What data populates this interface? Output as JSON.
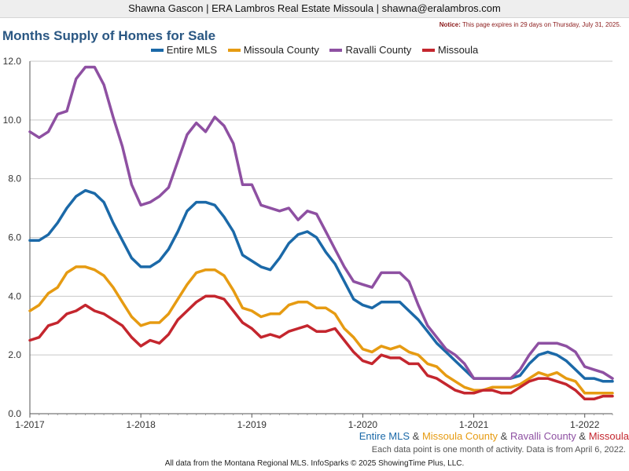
{
  "header": {
    "contact": "Shawna Gascon | ERA Lambros Real Estate Missoula | shawna@eralambros.com",
    "notice_label": "Notice:",
    "notice_text": "This page expires in 29 days on Thursday, July 31, 2025."
  },
  "footnote": "Each data point is one month of activity. Data is from April 6, 2022.",
  "footer": "All data from the Montana Regional MLS. InfoSparks © 2025 ShowingTime Plus, LLC.",
  "chart_data": {
    "type": "line",
    "title": "Months Supply of Homes for Sale",
    "xlabel": "",
    "ylabel": "",
    "ylim": [
      0,
      12
    ],
    "y_ticks": [
      "0.0",
      "2.0",
      "4.0",
      "6.0",
      "8.0",
      "10.0",
      "12.0"
    ],
    "x_start": "2017-01",
    "x_ticks": [
      "1-2017",
      "1-2018",
      "1-2019",
      "1-2020",
      "1-2021",
      "1-2022"
    ],
    "grid": true,
    "legend_position": "top",
    "series": [
      {
        "name": "Entire MLS",
        "color": "#1b69a8",
        "values": [
          5.9,
          5.9,
          6.1,
          6.5,
          7.0,
          7.4,
          7.6,
          7.5,
          7.2,
          6.5,
          5.9,
          5.3,
          5.0,
          5.0,
          5.2,
          5.6,
          6.2,
          6.9,
          7.2,
          7.2,
          7.1,
          6.7,
          6.2,
          5.4,
          5.2,
          5.0,
          4.9,
          5.3,
          5.8,
          6.1,
          6.2,
          6.0,
          5.5,
          5.1,
          4.5,
          3.9,
          3.7,
          3.6,
          3.8,
          3.8,
          3.8,
          3.5,
          3.2,
          2.8,
          2.4,
          2.1,
          1.8,
          1.5,
          1.2,
          1.2,
          1.2,
          1.2,
          1.2,
          1.3,
          1.7,
          2.0,
          2.1,
          2.0,
          1.8,
          1.5,
          1.2,
          1.2,
          1.1,
          1.1
        ]
      },
      {
        "name": "Missoula County",
        "color": "#e69b12",
        "values": [
          3.5,
          3.7,
          4.1,
          4.3,
          4.8,
          5.0,
          5.0,
          4.9,
          4.7,
          4.3,
          3.8,
          3.3,
          3.0,
          3.1,
          3.1,
          3.4,
          3.9,
          4.4,
          4.8,
          4.9,
          4.9,
          4.7,
          4.2,
          3.6,
          3.5,
          3.3,
          3.4,
          3.4,
          3.7,
          3.8,
          3.8,
          3.6,
          3.6,
          3.4,
          2.9,
          2.6,
          2.2,
          2.1,
          2.3,
          2.2,
          2.3,
          2.1,
          2.0,
          1.7,
          1.6,
          1.3,
          1.1,
          0.9,
          0.8,
          0.8,
          0.9,
          0.9,
          0.9,
          1.0,
          1.2,
          1.4,
          1.3,
          1.4,
          1.2,
          1.1,
          0.7,
          0.7,
          0.7,
          0.7
        ]
      },
      {
        "name": "Ravalli County",
        "color": "#8e50a2",
        "values": [
          9.6,
          9.4,
          9.6,
          10.2,
          10.3,
          11.4,
          11.8,
          11.8,
          11.2,
          10.1,
          9.1,
          7.8,
          7.1,
          7.2,
          7.4,
          7.7,
          8.6,
          9.5,
          9.9,
          9.6,
          10.1,
          9.8,
          9.2,
          7.8,
          7.8,
          7.1,
          7.0,
          6.9,
          7.0,
          6.6,
          6.9,
          6.8,
          6.2,
          5.6,
          5.0,
          4.5,
          4.4,
          4.3,
          4.8,
          4.8,
          4.8,
          4.5,
          3.7,
          3.0,
          2.6,
          2.2,
          2.0,
          1.7,
          1.2,
          1.2,
          1.2,
          1.2,
          1.2,
          1.5,
          2.0,
          2.4,
          2.4,
          2.4,
          2.3,
          2.1,
          1.6,
          1.5,
          1.4,
          1.2
        ]
      },
      {
        "name": "Missoula",
        "color": "#c4262e",
        "values": [
          2.5,
          2.6,
          3.0,
          3.1,
          3.4,
          3.5,
          3.7,
          3.5,
          3.4,
          3.2,
          3.0,
          2.6,
          2.3,
          2.5,
          2.4,
          2.7,
          3.2,
          3.5,
          3.8,
          4.0,
          4.0,
          3.9,
          3.5,
          3.1,
          2.9,
          2.6,
          2.7,
          2.6,
          2.8,
          2.9,
          3.0,
          2.8,
          2.8,
          2.9,
          2.5,
          2.1,
          1.8,
          1.7,
          2.0,
          1.9,
          1.9,
          1.7,
          1.7,
          1.3,
          1.2,
          1.0,
          0.8,
          0.7,
          0.7,
          0.8,
          0.8,
          0.7,
          0.7,
          0.9,
          1.1,
          1.2,
          1.2,
          1.1,
          1.0,
          0.8,
          0.5,
          0.5,
          0.6,
          0.6
        ]
      }
    ]
  }
}
